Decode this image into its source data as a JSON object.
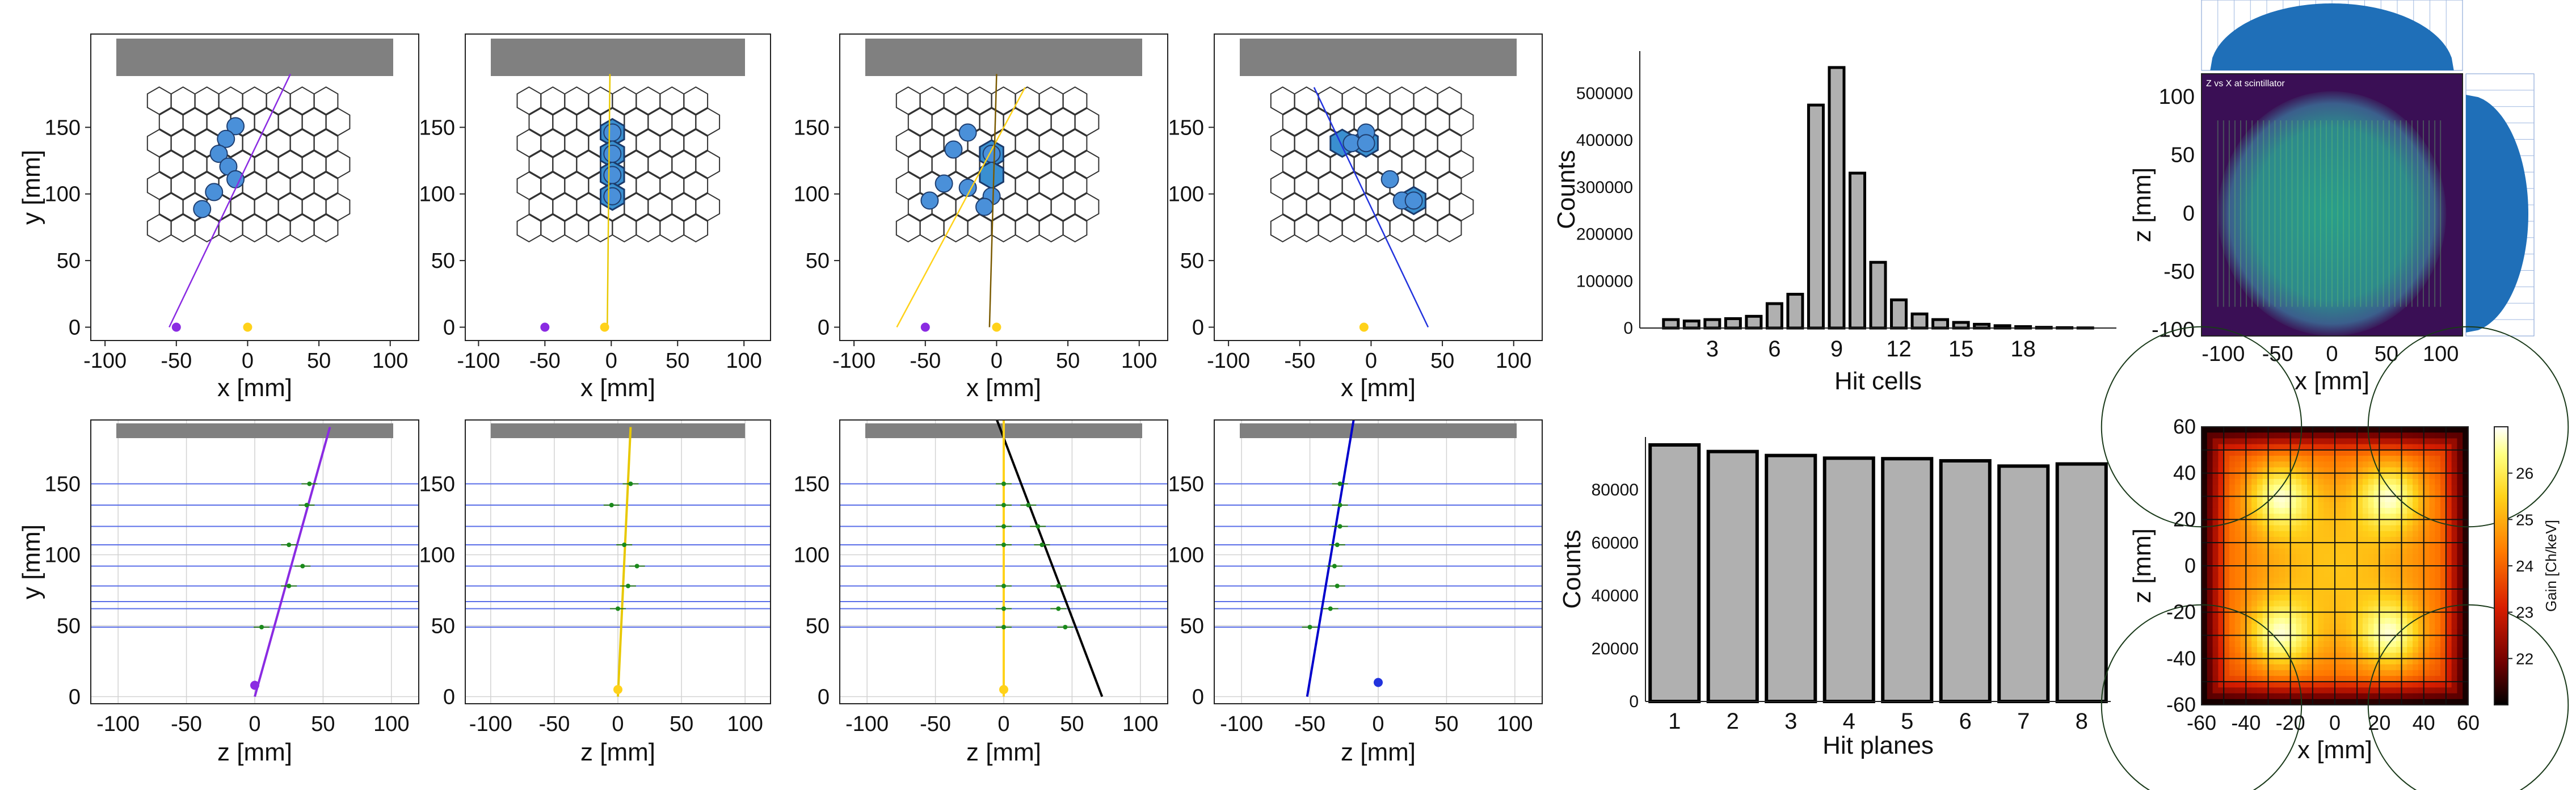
{
  "figure": {
    "event_panels": [
      {
        "color": "#8a2be2",
        "src": -50,
        "hex_hits": [
          [
            -0.3,
            4.3
          ],
          [
            -0.7,
            3.7
          ],
          [
            -1,
            3
          ],
          [
            -0.6,
            2.4
          ],
          [
            -0.3,
            1.8
          ],
          [
            -1.2,
            1.2
          ],
          [
            -1.7,
            0.4
          ]
        ],
        "hex_fill": [],
        "tracks": [
          [
            -55,
            0,
            30,
            190
          ]
        ]
      },
      {
        "color": "#e8c800",
        "src": -5,
        "hex_hits": [
          [
            0,
            4
          ],
          [
            0,
            3
          ],
          [
            0,
            2
          ],
          [
            0,
            1
          ]
        ],
        "hex_fill": [
          [
            0,
            4
          ],
          [
            0,
            3
          ],
          [
            0,
            2
          ],
          [
            0,
            1
          ]
        ],
        "tracks": [
          [
            -3,
            0,
            -1,
            190
          ]
        ]
      },
      {
        "color": "#ffd21a",
        "src": -50,
        "hex_hits": [
          [
            -1,
            4
          ],
          [
            -1.6,
            3.2
          ],
          [
            0,
            3
          ],
          [
            -2,
            1.6
          ],
          [
            -1,
            1.4
          ],
          [
            0,
            1
          ],
          [
            -2.6,
            0.8
          ],
          [
            -0.3,
            0.5
          ]
        ],
        "hex_fill": [
          [
            0,
            3
          ],
          [
            0,
            2
          ]
        ],
        "tracks": [
          [
            -70,
            0,
            20,
            180
          ],
          [
            -5,
            0,
            0,
            190
          ]
        ]
      },
      {
        "color": "#2233dd",
        "src": -5,
        "hex_hits": [
          [
            0,
            4
          ],
          [
            -0.6,
            3.5
          ],
          [
            0,
            3.5
          ],
          [
            1,
            1.8
          ],
          [
            1.5,
            0.8
          ],
          [
            2,
            0.8
          ]
        ],
        "hex_fill": [
          [
            -1,
            3.5
          ],
          [
            0,
            3.5
          ],
          [
            2,
            0.8
          ]
        ],
        "tracks": [
          [
            -40,
            180,
            40,
            0
          ]
        ]
      }
    ]
  },
  "chart_data": [
    {
      "type": "scatter",
      "panel": "top event display 1",
      "xlabel": "x [mm]",
      "ylabel": "y [mm]",
      "xlim": [
        -110,
        120
      ],
      "ylim": [
        -10,
        220
      ],
      "xticks": [
        "-100",
        "-50",
        "0",
        "50",
        "100"
      ],
      "xtick_values": [
        -100,
        -50,
        0,
        50,
        100
      ],
      "yticks": [
        "0",
        "50",
        "100",
        "150"
      ],
      "ytick_values": [
        0,
        50,
        100,
        150
      ],
      "track_color": "#9b30ff",
      "source_points": [
        [
          -50,
          0
        ],
        [
          0,
          0
        ]
      ],
      "source_colors": [
        "#8a2be2",
        "#ffd21a"
      ]
    },
    {
      "type": "scatter",
      "panel": "top event display 2",
      "xlabel": "x [mm]",
      "ylabel": "y [mm]",
      "xlim": [
        -110,
        120
      ],
      "ylim": [
        -10,
        220
      ],
      "xticks": [
        "-100",
        "-50",
        "0",
        "50",
        "100"
      ],
      "xtick_values": [
        -100,
        -50,
        0,
        50,
        100
      ],
      "yticks": [
        "0",
        "50",
        "100",
        "150"
      ],
      "ytick_values": [
        0,
        50,
        100,
        150
      ],
      "track_color": "#e8c800",
      "source_points": [
        [
          -50,
          0
        ],
        [
          -5,
          0
        ]
      ],
      "source_colors": [
        "#8a2be2",
        "#ffd21a"
      ]
    },
    {
      "type": "scatter",
      "panel": "top event display 3",
      "xlabel": "x [mm]",
      "ylabel": "y [mm]",
      "xlim": [
        -110,
        120
      ],
      "ylim": [
        -10,
        220
      ],
      "xticks": [
        "-100",
        "-50",
        "0",
        "50",
        "100"
      ],
      "xtick_values": [
        -100,
        -50,
        0,
        50,
        100
      ],
      "yticks": [
        "0",
        "50",
        "100",
        "150"
      ],
      "ytick_values": [
        0,
        50,
        100,
        150
      ],
      "track_color": "#7a5a00",
      "source_points": [
        [
          -50,
          0
        ],
        [
          0,
          0
        ]
      ],
      "source_colors": [
        "#8a2be2",
        "#ffd21a"
      ]
    },
    {
      "type": "scatter",
      "panel": "top event display 4",
      "xlabel": "x [mm]",
      "ylabel": "y [mm]",
      "xlim": [
        -110,
        120
      ],
      "ylim": [
        -10,
        220
      ],
      "xticks": [
        "-100",
        "-50",
        "0",
        "50",
        "100"
      ],
      "xtick_values": [
        -100,
        -50,
        0,
        50,
        100
      ],
      "yticks": [
        "0",
        "50",
        "100",
        "150"
      ],
      "ytick_values": [
        0,
        50,
        100,
        150
      ],
      "track_color": "#2233dd",
      "source_points": [
        [
          -5,
          0
        ]
      ],
      "source_colors": [
        "#ffd21a"
      ]
    },
    {
      "type": "line",
      "panel": "bottom track fit 1",
      "xlabel": "z [mm]",
      "ylabel": "y [mm]",
      "xlim": [
        -120,
        120
      ],
      "ylim": [
        -5,
        195
      ],
      "xticks": [
        "-100",
        "-50",
        "0",
        "50",
        "100"
      ],
      "xtick_values": [
        -100,
        -50,
        0,
        50,
        100
      ],
      "yticks": [
        "0",
        "50",
        "100",
        "150"
      ],
      "ytick_values": [
        0,
        50,
        100,
        150
      ],
      "planes": [
        49,
        62,
        67,
        78,
        92,
        107,
        120,
        135,
        150
      ],
      "track": [
        [
          0,
          0
        ],
        [
          55,
          190
        ]
      ],
      "track_color": "#8a2be2",
      "hits": [
        [
          5,
          49
        ],
        [
          25,
          78
        ],
        [
          35,
          92
        ],
        [
          25,
          107
        ],
        [
          38,
          135
        ],
        [
          40,
          150
        ]
      ],
      "source": [
        0,
        8
      ],
      "source_color": "#8a2be2"
    },
    {
      "type": "line",
      "panel": "bottom track fit 2",
      "xlabel": "z [mm]",
      "ylabel": "y [mm]",
      "xlim": [
        -120,
        120
      ],
      "ylim": [
        -5,
        195
      ],
      "xticks": [
        "-100",
        "-50",
        "0",
        "50",
        "100"
      ],
      "xtick_values": [
        -100,
        -50,
        0,
        50,
        100
      ],
      "yticks": [
        "0",
        "50",
        "100",
        "150"
      ],
      "ytick_values": [
        0,
        50,
        100,
        150
      ],
      "planes": [
        49,
        62,
        67,
        78,
        92,
        107,
        120,
        135,
        150
      ],
      "track": [
        [
          0,
          0
        ],
        [
          10,
          190
        ]
      ],
      "track_color": "#e8c800",
      "hits": [
        [
          0,
          62
        ],
        [
          8,
          78
        ],
        [
          15,
          92
        ],
        [
          5,
          107
        ],
        [
          -5,
          135
        ],
        [
          10,
          150
        ]
      ],
      "source": [
        0,
        5
      ],
      "source_color": "#ffd21a"
    },
    {
      "type": "line",
      "panel": "bottom track fit 3",
      "xlabel": "z [mm]",
      "ylabel": "y [mm]",
      "xlim": [
        -120,
        120
      ],
      "ylim": [
        -5,
        195
      ],
      "xticks": [
        "-100",
        "-50",
        "0",
        "50",
        "100"
      ],
      "xtick_values": [
        -100,
        -50,
        0,
        50,
        100
      ],
      "yticks": [
        "0",
        "50",
        "100",
        "150"
      ],
      "ytick_values": [
        0,
        50,
        100,
        150
      ],
      "planes": [
        49,
        62,
        67,
        78,
        92,
        107,
        120,
        135,
        150
      ],
      "track": [
        [
          -5,
          195
        ],
        [
          72,
          0
        ]
      ],
      "track_color": "#000000",
      "hits": [
        [
          0,
          49
        ],
        [
          45,
          49
        ],
        [
          0,
          62
        ],
        [
          40,
          62
        ],
        [
          0,
          78
        ],
        [
          40,
          78
        ],
        [
          0,
          107
        ],
        [
          28,
          107
        ],
        [
          0,
          120
        ],
        [
          25,
          120
        ],
        [
          0,
          135
        ],
        [
          18,
          135
        ],
        [
          0,
          150
        ]
      ],
      "second_track": [
        [
          0,
          0
        ],
        [
          0,
          195
        ]
      ],
      "second_color": "#ffd21a",
      "source": [
        0,
        5
      ],
      "source_color": "#ffd21a"
    },
    {
      "type": "line",
      "panel": "bottom track fit 4",
      "xlabel": "z [mm]",
      "ylabel": "y [mm]",
      "xlim": [
        -120,
        120
      ],
      "ylim": [
        -5,
        195
      ],
      "xticks": [
        "-100",
        "-50",
        "0",
        "50",
        "100"
      ],
      "xtick_values": [
        -100,
        -50,
        0,
        50,
        100
      ],
      "yticks": [
        "0",
        "50",
        "100",
        "150"
      ],
      "ytick_values": [
        0,
        50,
        100,
        150
      ],
      "planes": [
        49,
        62,
        67,
        78,
        92,
        107,
        120,
        135,
        150
      ],
      "track": [
        [
          -52,
          0
        ],
        [
          -18,
          195
        ]
      ],
      "track_color": "#0000cc",
      "hits": [
        [
          -50,
          49
        ],
        [
          -35,
          62
        ],
        [
          -30,
          78
        ],
        [
          -32,
          92
        ],
        [
          -30,
          107
        ],
        [
          -28,
          120
        ],
        [
          -28,
          135
        ],
        [
          -28,
          150
        ]
      ],
      "source": [
        0,
        10
      ],
      "source_color": "#2233dd"
    },
    {
      "type": "bar",
      "panel": "hit cells histogram",
      "xlabel": "Hit cells",
      "ylabel": "Counts",
      "categories": [
        1,
        2,
        3,
        4,
        5,
        6,
        7,
        8,
        9,
        10,
        11,
        12,
        13,
        14,
        15,
        16,
        17,
        18,
        19,
        20,
        21
      ],
      "values": [
        18000,
        15000,
        18000,
        20000,
        25000,
        52000,
        72000,
        475000,
        555000,
        330000,
        140000,
        60000,
        30000,
        18000,
        12000,
        8000,
        5000,
        3000,
        1500,
        800,
        300
      ],
      "xticks": [
        "3",
        "6",
        "9",
        "12",
        "15",
        "18"
      ],
      "xtick_values": [
        3,
        6,
        9,
        12,
        15,
        18
      ],
      "yticks": [
        "0",
        "100000",
        "200000",
        "300000",
        "400000",
        "500000"
      ],
      "ytick_values": [
        0,
        100000,
        200000,
        300000,
        400000,
        500000
      ],
      "xlim": [
        -0.5,
        22.5
      ],
      "ylim": [
        0,
        590000
      ]
    },
    {
      "type": "heatmap",
      "panel": "Z vs X at scintillator",
      "title": "Z vs X at scintillator",
      "xlabel": "x [mm]",
      "ylabel": "z [mm]",
      "xlim": [
        -120,
        120
      ],
      "ylim": [
        -105,
        120
      ],
      "xticks": [
        "-100",
        "-50",
        "0",
        "50",
        "100"
      ],
      "xtick_values": [
        -100,
        -50,
        0,
        50,
        100
      ],
      "yticks": [
        "-100",
        "-50",
        "0",
        "50",
        "100"
      ],
      "ytick_values": [
        -100,
        -50,
        0,
        50,
        100
      ],
      "disc_radius_mm": 105,
      "x_projection": "peaked at 0, falling to ~0 at ±110",
      "z_projection": "peaked at 0, falling to ~0 at ±100"
    },
    {
      "type": "bar",
      "panel": "hit planes histogram",
      "xlabel": "Hit planes",
      "ylabel": "Counts",
      "categories": [
        "1",
        "2",
        "3",
        "4",
        "5",
        "6",
        "7",
        "8"
      ],
      "values": [
        97000,
        94500,
        93000,
        92000,
        91800,
        91000,
        89000,
        89800
      ],
      "yticks": [
        "0",
        "20000",
        "40000",
        "60000",
        "80000"
      ],
      "ytick_values": [
        0,
        20000,
        40000,
        60000,
        80000
      ],
      "ylim": [
        0,
        100000
      ]
    },
    {
      "type": "heatmap",
      "panel": "gain map",
      "xlabel": "x [mm]",
      "ylabel": "z [mm]",
      "colorbar_label": "Gain [Ch/keV]",
      "xlim": [
        -60,
        60
      ],
      "ylim": [
        -60,
        60
      ],
      "xticks": [
        "-60",
        "-40",
        "-20",
        "0",
        "20",
        "40",
        "60"
      ],
      "xtick_values": [
        -60,
        -40,
        -20,
        0,
        20,
        40,
        60
      ],
      "yticks": [
        "-60",
        "-40",
        "-20",
        "0",
        "20",
        "40",
        "60"
      ],
      "ytick_values": [
        -60,
        -40,
        -20,
        0,
        20,
        40,
        60
      ],
      "colorbar_ticks": [
        "22",
        "23",
        "24",
        "25",
        "26"
      ],
      "colorbar_values": [
        22,
        23,
        24,
        25,
        26
      ],
      "clim": [
        21,
        27
      ],
      "grid_cells": 12,
      "hot_spots": [
        [
          -25,
          30
        ],
        [
          25,
          30
        ],
        [
          -25,
          -30
        ],
        [
          25,
          -30
        ]
      ]
    }
  ]
}
